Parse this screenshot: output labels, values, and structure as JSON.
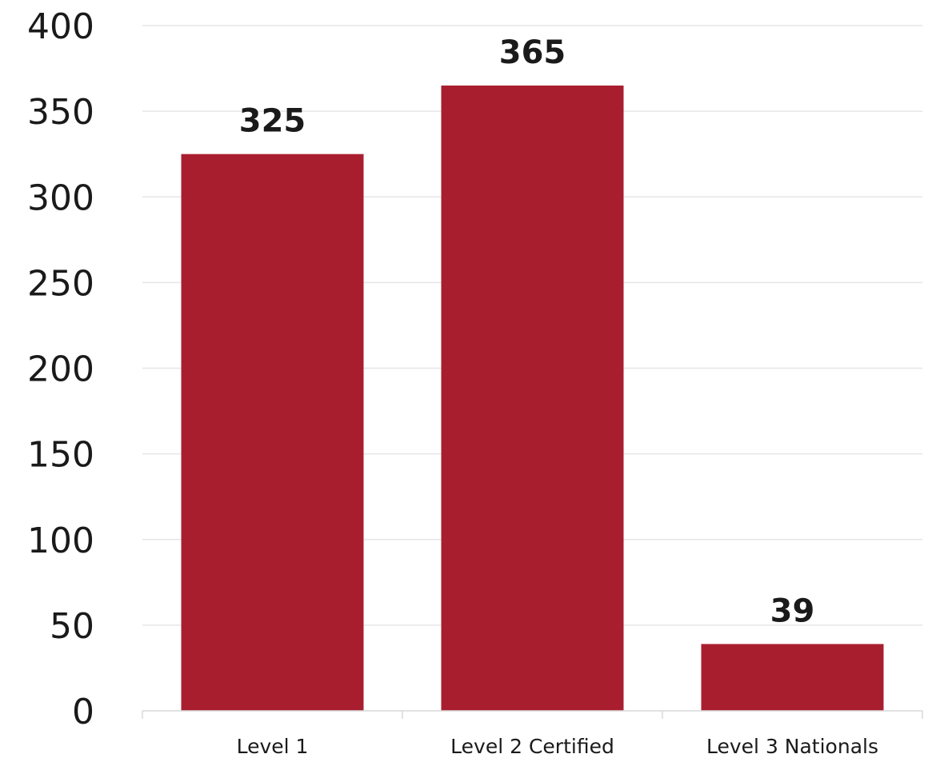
{
  "chart_data": {
    "type": "bar",
    "categories": [
      "Level 1",
      "Level 2 Certified",
      "Level 3 Nationals"
    ],
    "values": [
      325,
      365,
      39
    ],
    "data_labels": [
      "325",
      "365",
      "39"
    ],
    "title": "",
    "xlabel": "",
    "ylabel": "",
    "ylim": [
      0,
      400
    ],
    "yticks": [
      0,
      50,
      100,
      150,
      200,
      250,
      300,
      350,
      400
    ],
    "ytick_labels": [
      "0",
      "50",
      "100",
      "150",
      "200",
      "250",
      "300",
      "350",
      "400"
    ],
    "grid": true,
    "legend": "none",
    "bar_color": "#a91e2f"
  }
}
